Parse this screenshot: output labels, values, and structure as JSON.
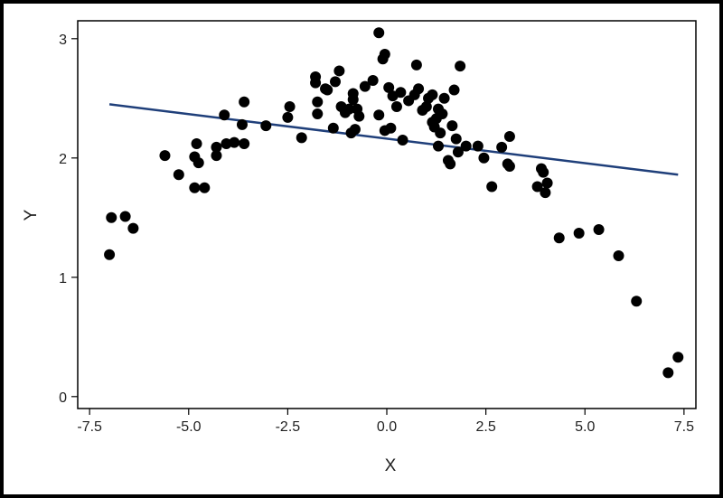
{
  "chart_data": {
    "type": "scatter",
    "xlabel": "X",
    "ylabel": "Y",
    "xlim": [
      -7.8,
      7.8
    ],
    "ylim": [
      -0.1,
      3.15
    ],
    "x_ticks": [
      -7.5,
      -5.0,
      -2.5,
      0.0,
      2.5,
      5.0,
      7.5
    ],
    "x_tick_labels": [
      "-7.5",
      "-5.0",
      "-2.5",
      "0.0",
      "2.5",
      "5.0",
      "7.5"
    ],
    "y_ticks": [
      0,
      1,
      2,
      3
    ],
    "y_tick_labels": [
      "0",
      "1",
      "2",
      "3"
    ],
    "grid": false,
    "colors": {
      "points": "#000000",
      "fit_line": "#1f3f7a",
      "frame": "#000000"
    },
    "fit_line": {
      "x": [
        -7.0,
        7.35
      ],
      "y": [
        2.45,
        1.86
      ]
    },
    "points": [
      [
        -7.0,
        1.19
      ],
      [
        -6.95,
        1.5
      ],
      [
        -6.6,
        1.51
      ],
      [
        -6.4,
        1.41
      ],
      [
        -5.6,
        2.02
      ],
      [
        -5.25,
        1.86
      ],
      [
        -4.85,
        1.75
      ],
      [
        -4.85,
        2.01
      ],
      [
        -4.8,
        2.12
      ],
      [
        -4.75,
        1.96
      ],
      [
        -4.6,
        1.75
      ],
      [
        -4.3,
        2.09
      ],
      [
        -4.3,
        2.02
      ],
      [
        -4.1,
        2.36
      ],
      [
        -4.05,
        2.12
      ],
      [
        -3.85,
        2.13
      ],
      [
        -3.65,
        2.28
      ],
      [
        -3.6,
        2.47
      ],
      [
        -3.6,
        2.12
      ],
      [
        -3.05,
        2.27
      ],
      [
        -2.5,
        2.34
      ],
      [
        -2.45,
        2.43
      ],
      [
        -2.15,
        2.17
      ],
      [
        -1.8,
        2.68
      ],
      [
        -1.8,
        2.63
      ],
      [
        -1.75,
        2.47
      ],
      [
        -1.75,
        2.37
      ],
      [
        -1.55,
        2.58
      ],
      [
        -1.5,
        2.57
      ],
      [
        -1.35,
        2.25
      ],
      [
        -1.3,
        2.64
      ],
      [
        -1.2,
        2.73
      ],
      [
        -1.15,
        2.43
      ],
      [
        -1.05,
        2.38
      ],
      [
        -0.95,
        2.41
      ],
      [
        -0.9,
        2.21
      ],
      [
        -0.85,
        2.54
      ],
      [
        -0.85,
        2.49
      ],
      [
        -0.8,
        2.24
      ],
      [
        -0.75,
        2.41
      ],
      [
        -0.7,
        2.35
      ],
      [
        -0.55,
        2.6
      ],
      [
        -0.35,
        2.65
      ],
      [
        -0.2,
        3.05
      ],
      [
        -0.2,
        2.36
      ],
      [
        -0.1,
        2.83
      ],
      [
        -0.05,
        2.87
      ],
      [
        -0.05,
        2.23
      ],
      [
        0.05,
        2.59
      ],
      [
        0.1,
        2.25
      ],
      [
        0.15,
        2.52
      ],
      [
        0.25,
        2.43
      ],
      [
        0.35,
        2.55
      ],
      [
        0.4,
        2.15
      ],
      [
        0.55,
        2.48
      ],
      [
        0.7,
        2.53
      ],
      [
        0.75,
        2.78
      ],
      [
        0.8,
        2.58
      ],
      [
        0.9,
        2.4
      ],
      [
        1.0,
        2.43
      ],
      [
        1.05,
        2.5
      ],
      [
        1.15,
        2.3
      ],
      [
        1.15,
        2.53
      ],
      [
        1.2,
        2.26
      ],
      [
        1.25,
        2.33
      ],
      [
        1.3,
        2.41
      ],
      [
        1.3,
        2.1
      ],
      [
        1.35,
        2.21
      ],
      [
        1.4,
        2.37
      ],
      [
        1.45,
        2.5
      ],
      [
        1.55,
        1.98
      ],
      [
        1.6,
        1.95
      ],
      [
        1.65,
        2.27
      ],
      [
        1.7,
        2.57
      ],
      [
        1.75,
        2.16
      ],
      [
        1.8,
        2.05
      ],
      [
        1.85,
        2.77
      ],
      [
        2.0,
        2.1
      ],
      [
        2.3,
        2.1
      ],
      [
        2.45,
        2.0
      ],
      [
        2.65,
        1.76
      ],
      [
        2.9,
        2.09
      ],
      [
        3.05,
        1.95
      ],
      [
        3.1,
        2.18
      ],
      [
        3.1,
        1.93
      ],
      [
        3.8,
        1.76
      ],
      [
        3.9,
        1.91
      ],
      [
        3.95,
        1.88
      ],
      [
        4.0,
        1.71
      ],
      [
        4.05,
        1.79
      ],
      [
        4.35,
        1.33
      ],
      [
        4.85,
        1.37
      ],
      [
        5.35,
        1.4
      ],
      [
        5.85,
        1.18
      ],
      [
        6.3,
        0.8
      ],
      [
        7.1,
        0.2
      ],
      [
        7.35,
        0.33
      ]
    ]
  }
}
